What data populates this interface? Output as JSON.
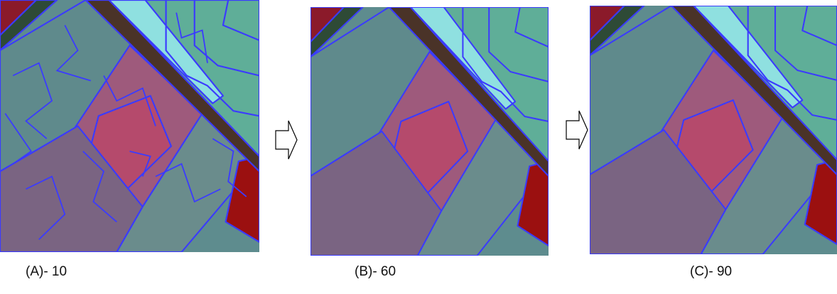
{
  "panels": [
    {
      "caption": "(A)- 10"
    },
    {
      "caption": "(B)- 60"
    },
    {
      "caption": "(C)- 90"
    }
  ]
}
